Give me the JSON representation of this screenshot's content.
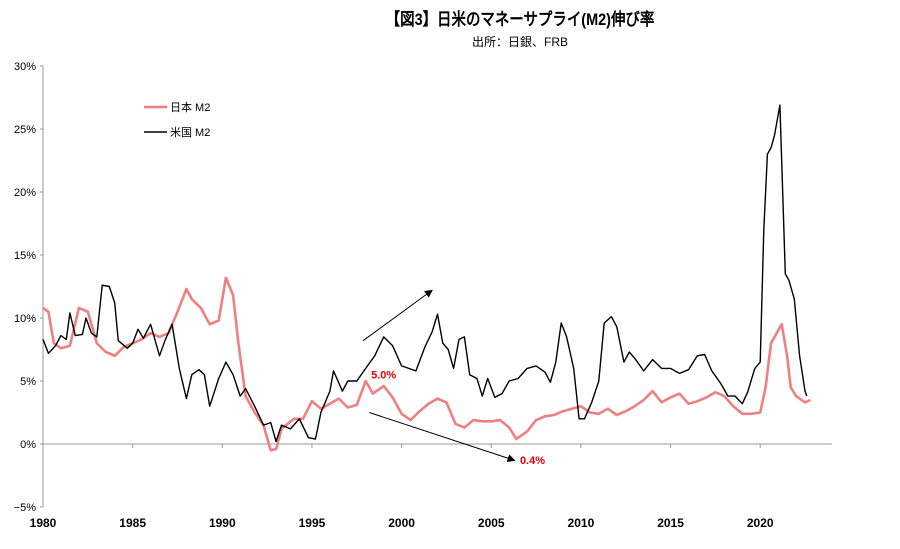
{
  "chart_data": {
    "type": "line",
    "title": "【図3】日米のマネーサプライ(M2)伸び率",
    "subtitle": "出所：日銀、FRB",
    "xlabel": "",
    "ylabel": "",
    "xlim": [
      1980,
      2024
    ],
    "ylim": [
      -5,
      30
    ],
    "x_ticks": [
      "1980",
      "1985",
      "1990",
      "1995",
      "2000",
      "2005",
      "2010",
      "2015",
      "2020"
    ],
    "y_ticks": [
      "30%",
      "25%",
      "20%",
      "15%",
      "10%",
      "5%",
      "0%",
      "−5%"
    ],
    "grid": false,
    "legend_position": "top-left",
    "series": [
      {
        "name": "日本 M2",
        "color": "#f08080",
        "points": [
          [
            1980,
            10.8
          ],
          [
            1980.3,
            10.5
          ],
          [
            1980.6,
            8
          ],
          [
            1981,
            7.6
          ],
          [
            1981.5,
            7.8
          ],
          [
            1982,
            10.8
          ],
          [
            1982.5,
            10.5
          ],
          [
            1983,
            8
          ],
          [
            1983.5,
            7.3
          ],
          [
            1984,
            7
          ],
          [
            1984.5,
            7.7
          ],
          [
            1985,
            8
          ],
          [
            1985.5,
            8.3
          ],
          [
            1986,
            8.8
          ],
          [
            1986.5,
            8.5
          ],
          [
            1987,
            8.8
          ],
          [
            1987.5,
            10.5
          ],
          [
            1988,
            12.3
          ],
          [
            1988.3,
            11.5
          ],
          [
            1988.8,
            10.8
          ],
          [
            1989.3,
            9.5
          ],
          [
            1989.8,
            9.8
          ],
          [
            1990.2,
            13.2
          ],
          [
            1990.6,
            11.8
          ],
          [
            1990.9,
            8
          ],
          [
            1991.3,
            3.8
          ],
          [
            1991.8,
            2.5
          ],
          [
            1992.3,
            1.5
          ],
          [
            1992.7,
            -0.5
          ],
          [
            1993,
            -0.4
          ],
          [
            1993.3,
            1.2
          ],
          [
            1994,
            2
          ],
          [
            1994.5,
            2
          ],
          [
            1995,
            3.4
          ],
          [
            1995.5,
            2.8
          ],
          [
            1996,
            3.2
          ],
          [
            1996.5,
            3.6
          ],
          [
            1997,
            2.9
          ],
          [
            1997.5,
            3.1
          ],
          [
            1998,
            5.0
          ],
          [
            1998.4,
            4.0
          ],
          [
            1999,
            4.6
          ],
          [
            1999.5,
            3.7
          ],
          [
            2000,
            2.4
          ],
          [
            2000.5,
            1.9
          ],
          [
            2001,
            2.6
          ],
          [
            2001.5,
            3.2
          ],
          [
            2002,
            3.6
          ],
          [
            2002.5,
            3.3
          ],
          [
            2003,
            1.6
          ],
          [
            2003.5,
            1.3
          ],
          [
            2004,
            1.9
          ],
          [
            2004.5,
            1.8
          ],
          [
            2005,
            1.8
          ],
          [
            2005.5,
            1.9
          ],
          [
            2006,
            1.3
          ],
          [
            2006.4,
            0.4
          ],
          [
            2007,
            1.0
          ],
          [
            2007.5,
            1.9
          ],
          [
            2008,
            2.2
          ],
          [
            2008.5,
            2.3
          ],
          [
            2009,
            2.6
          ],
          [
            2009.5,
            2.8
          ],
          [
            2010,
            3.0
          ],
          [
            2010.5,
            2.5
          ],
          [
            2011,
            2.4
          ],
          [
            2011.5,
            2.8
          ],
          [
            2012,
            2.3
          ],
          [
            2012.5,
            2.6
          ],
          [
            2013,
            3.0
          ],
          [
            2013.5,
            3.5
          ],
          [
            2014,
            4.2
          ],
          [
            2014.5,
            3.3
          ],
          [
            2015,
            3.7
          ],
          [
            2015.5,
            4.0
          ],
          [
            2016,
            3.2
          ],
          [
            2016.5,
            3.4
          ],
          [
            2017,
            3.7
          ],
          [
            2017.5,
            4.1
          ],
          [
            2018,
            3.8
          ],
          [
            2018.5,
            3.0
          ],
          [
            2019,
            2.4
          ],
          [
            2019.5,
            2.4
          ],
          [
            2020,
            2.5
          ],
          [
            2020.3,
            4.5
          ],
          [
            2020.6,
            8.0
          ],
          [
            2021,
            9.0
          ],
          [
            2021.2,
            9.5
          ],
          [
            2021.5,
            7
          ],
          [
            2021.7,
            4.5
          ],
          [
            2022,
            3.8
          ],
          [
            2022.5,
            3.3
          ],
          [
            2022.8,
            3.5
          ]
        ]
      },
      {
        "name": "米国 M2",
        "color": "#000000",
        "points": [
          [
            1980,
            8.3
          ],
          [
            1980.3,
            7.2
          ],
          [
            1980.7,
            7.8
          ],
          [
            1981,
            8.6
          ],
          [
            1981.3,
            8.3
          ],
          [
            1981.5,
            10.4
          ],
          [
            1981.8,
            8.6
          ],
          [
            1982.2,
            8.7
          ],
          [
            1982.4,
            10.0
          ],
          [
            1982.7,
            8.8
          ],
          [
            1983,
            8.5
          ],
          [
            1983.3,
            12.6
          ],
          [
            1983.7,
            12.5
          ],
          [
            1984,
            11.2
          ],
          [
            1984.2,
            8.2
          ],
          [
            1984.7,
            7.6
          ],
          [
            1985,
            8.0
          ],
          [
            1985.3,
            9.1
          ],
          [
            1985.6,
            8.4
          ],
          [
            1986,
            9.5
          ],
          [
            1986.5,
            7.0
          ],
          [
            1986.8,
            8.2
          ],
          [
            1987.2,
            9.5
          ],
          [
            1987.6,
            6.0
          ],
          [
            1988,
            3.6
          ],
          [
            1988.3,
            5.5
          ],
          [
            1988.7,
            5.9
          ],
          [
            1989,
            5.5
          ],
          [
            1989.3,
            3.0
          ],
          [
            1989.8,
            5.2
          ],
          [
            1990.2,
            6.5
          ],
          [
            1990.6,
            5.5
          ],
          [
            1991,
            3.8
          ],
          [
            1991.3,
            4.4
          ],
          [
            1991.8,
            3.0
          ],
          [
            1992.3,
            1.5
          ],
          [
            1992.7,
            1.7
          ],
          [
            1993,
            0.2
          ],
          [
            1993.3,
            1.5
          ],
          [
            1993.8,
            1.2
          ],
          [
            1994.3,
            2.0
          ],
          [
            1994.8,
            0.5
          ],
          [
            1995.2,
            0.4
          ],
          [
            1995.5,
            2.5
          ],
          [
            1996,
            4.2
          ],
          [
            1996.2,
            5.8
          ],
          [
            1996.7,
            4.2
          ],
          [
            1997,
            5.0
          ],
          [
            1997.5,
            5.0
          ],
          [
            1998,
            6.0
          ],
          [
            1998.5,
            7.0
          ],
          [
            1999,
            8.5
          ],
          [
            1999.5,
            7.8
          ],
          [
            2000,
            6.2
          ],
          [
            2000.4,
            6.0
          ],
          [
            2000.8,
            5.8
          ],
          [
            2001.3,
            7.7
          ],
          [
            2001.7,
            8.9
          ],
          [
            2002,
            10.3
          ],
          [
            2002.3,
            8.0
          ],
          [
            2002.6,
            7.5
          ],
          [
            2002.9,
            6.0
          ],
          [
            2003.2,
            8.3
          ],
          [
            2003.5,
            8.5
          ],
          [
            2003.8,
            5.5
          ],
          [
            2004.2,
            5.2
          ],
          [
            2004.5,
            3.8
          ],
          [
            2004.8,
            5.2
          ],
          [
            2005.2,
            3.7
          ],
          [
            2005.6,
            4.0
          ],
          [
            2006,
            5.0
          ],
          [
            2006.5,
            5.2
          ],
          [
            2007,
            6.0
          ],
          [
            2007.5,
            6.2
          ],
          [
            2008,
            5.7
          ],
          [
            2008.3,
            4.9
          ],
          [
            2008.6,
            6.5
          ],
          [
            2008.9,
            9.6
          ],
          [
            2009.2,
            8.5
          ],
          [
            2009.6,
            6.0
          ],
          [
            2009.9,
            2.0
          ],
          [
            2010.2,
            2.0
          ],
          [
            2010.6,
            3.3
          ],
          [
            2011,
            5.0
          ],
          [
            2011.3,
            9.6
          ],
          [
            2011.7,
            10.1
          ],
          [
            2012,
            9.3
          ],
          [
            2012.4,
            6.5
          ],
          [
            2012.7,
            7.3
          ],
          [
            2013,
            6.8
          ],
          [
            2013.5,
            5.8
          ],
          [
            2014,
            6.7
          ],
          [
            2014.5,
            6.0
          ],
          [
            2015,
            6.0
          ],
          [
            2015.5,
            5.6
          ],
          [
            2016,
            5.9
          ],
          [
            2016.5,
            7.0
          ],
          [
            2016.9,
            7.1
          ],
          [
            2017.3,
            5.8
          ],
          [
            2017.8,
            4.8
          ],
          [
            2018.2,
            3.8
          ],
          [
            2018.6,
            3.8
          ],
          [
            2019,
            3.2
          ],
          [
            2019.3,
            4.1
          ],
          [
            2019.7,
            6.0
          ],
          [
            2020,
            6.5
          ],
          [
            2020.2,
            17
          ],
          [
            2020.4,
            23
          ],
          [
            2020.6,
            23.5
          ],
          [
            2020.8,
            24.5
          ],
          [
            2021.1,
            26.9
          ],
          [
            2021.4,
            13.5
          ],
          [
            2021.6,
            13
          ],
          [
            2021.9,
            11.5
          ],
          [
            2022.2,
            7
          ],
          [
            2022.5,
            4.2
          ],
          [
            2022.6,
            3.8
          ]
        ]
      }
    ],
    "annotations": [
      {
        "type": "arrow",
        "from": [
          1997.85,
          8.2
        ],
        "to": [
          2001.7,
          12.2
        ]
      },
      {
        "type": "arrow",
        "from": [
          1998.2,
          2.5
        ],
        "to": [
          2006.3,
          -1.3
        ]
      },
      {
        "type": "label",
        "text": "5.0%",
        "at": [
          1998.3,
          5.2
        ],
        "color": "#e00000"
      },
      {
        "type": "label",
        "text": "0.4%",
        "at": [
          2006.6,
          -1.6
        ],
        "color": "#e00000"
      }
    ]
  }
}
